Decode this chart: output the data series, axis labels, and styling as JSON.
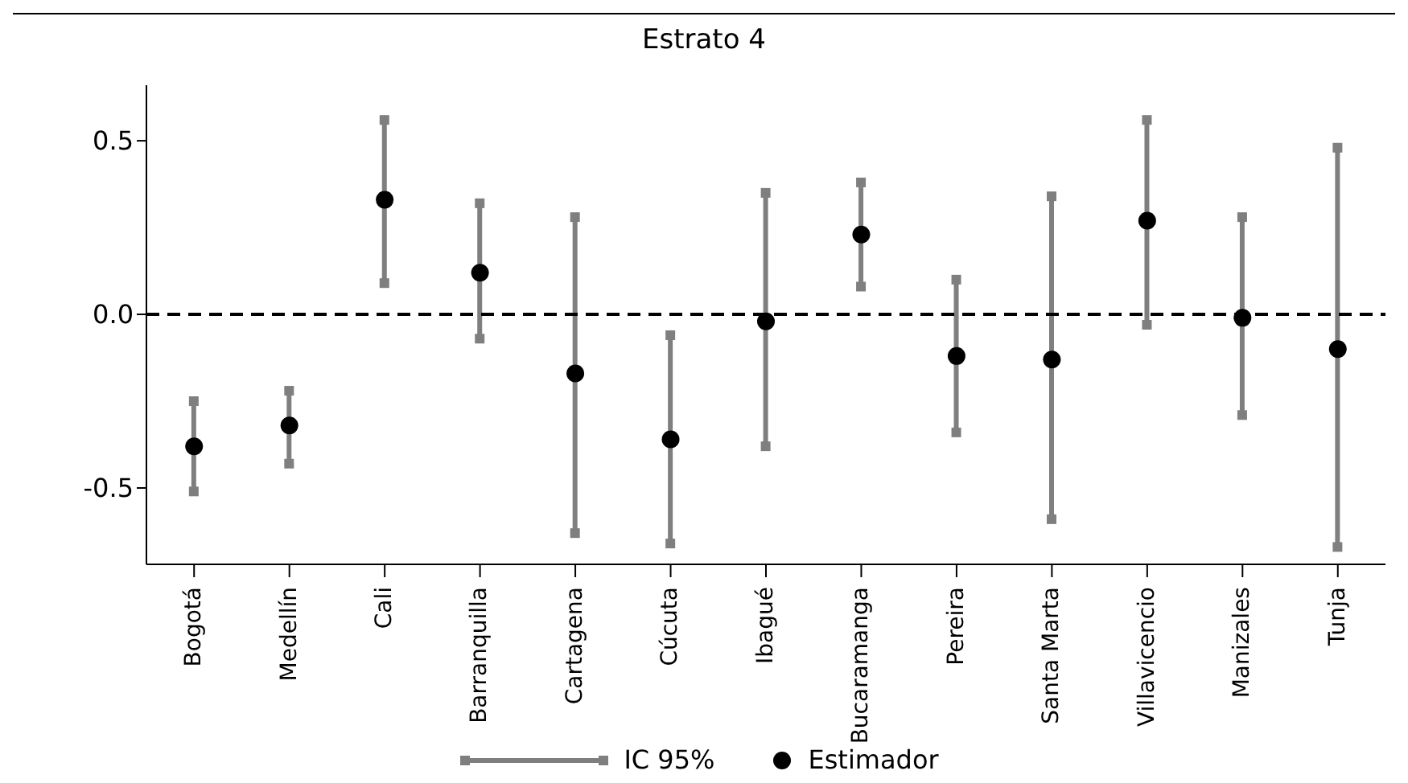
{
  "chart_data": {
    "type": "scatter",
    "title": "Estrato 4",
    "categories": [
      "Bogotá",
      "Medellín",
      "Cali",
      "Barranquilla",
      "Cartagena",
      "Cúcuta",
      "Ibagué",
      "Bucaramanga",
      "Pereira",
      "Santa Marta",
      "Villavicencio",
      "Manizales",
      "Tunja"
    ],
    "series": [
      {
        "name": "Estimador",
        "color": "#000000",
        "marker": "circle",
        "values": [
          -0.38,
          -0.32,
          0.33,
          0.12,
          -0.17,
          -0.36,
          -0.02,
          0.23,
          -0.12,
          -0.13,
          0.27,
          -0.01,
          -0.1
        ],
        "errors": [
          [
            -0.51,
            -0.25
          ],
          [
            -0.43,
            -0.22
          ],
          [
            0.09,
            0.56
          ],
          [
            -0.07,
            0.32
          ],
          [
            -0.63,
            0.28
          ],
          [
            -0.66,
            -0.06
          ],
          [
            -0.38,
            0.35
          ],
          [
            0.08,
            0.38
          ],
          [
            -0.34,
            0.1
          ],
          [
            -0.59,
            0.34
          ],
          [
            -0.03,
            0.56
          ],
          [
            -0.29,
            0.28
          ],
          [
            -0.67,
            0.48
          ]
        ]
      }
    ],
    "annotations": [
      "IC 95%"
    ],
    "ylim": [
      -0.72,
      0.66
    ],
    "yticks": [
      -0.5,
      {
        "value": 0,
        "label": "0.0"
      },
      0.5
    ],
    "ref_lines": [
      {
        "axis": "y",
        "value": 0,
        "color": "#000000",
        "line_style": "dashed"
      }
    ],
    "grid": false,
    "legend": "bottom"
  }
}
